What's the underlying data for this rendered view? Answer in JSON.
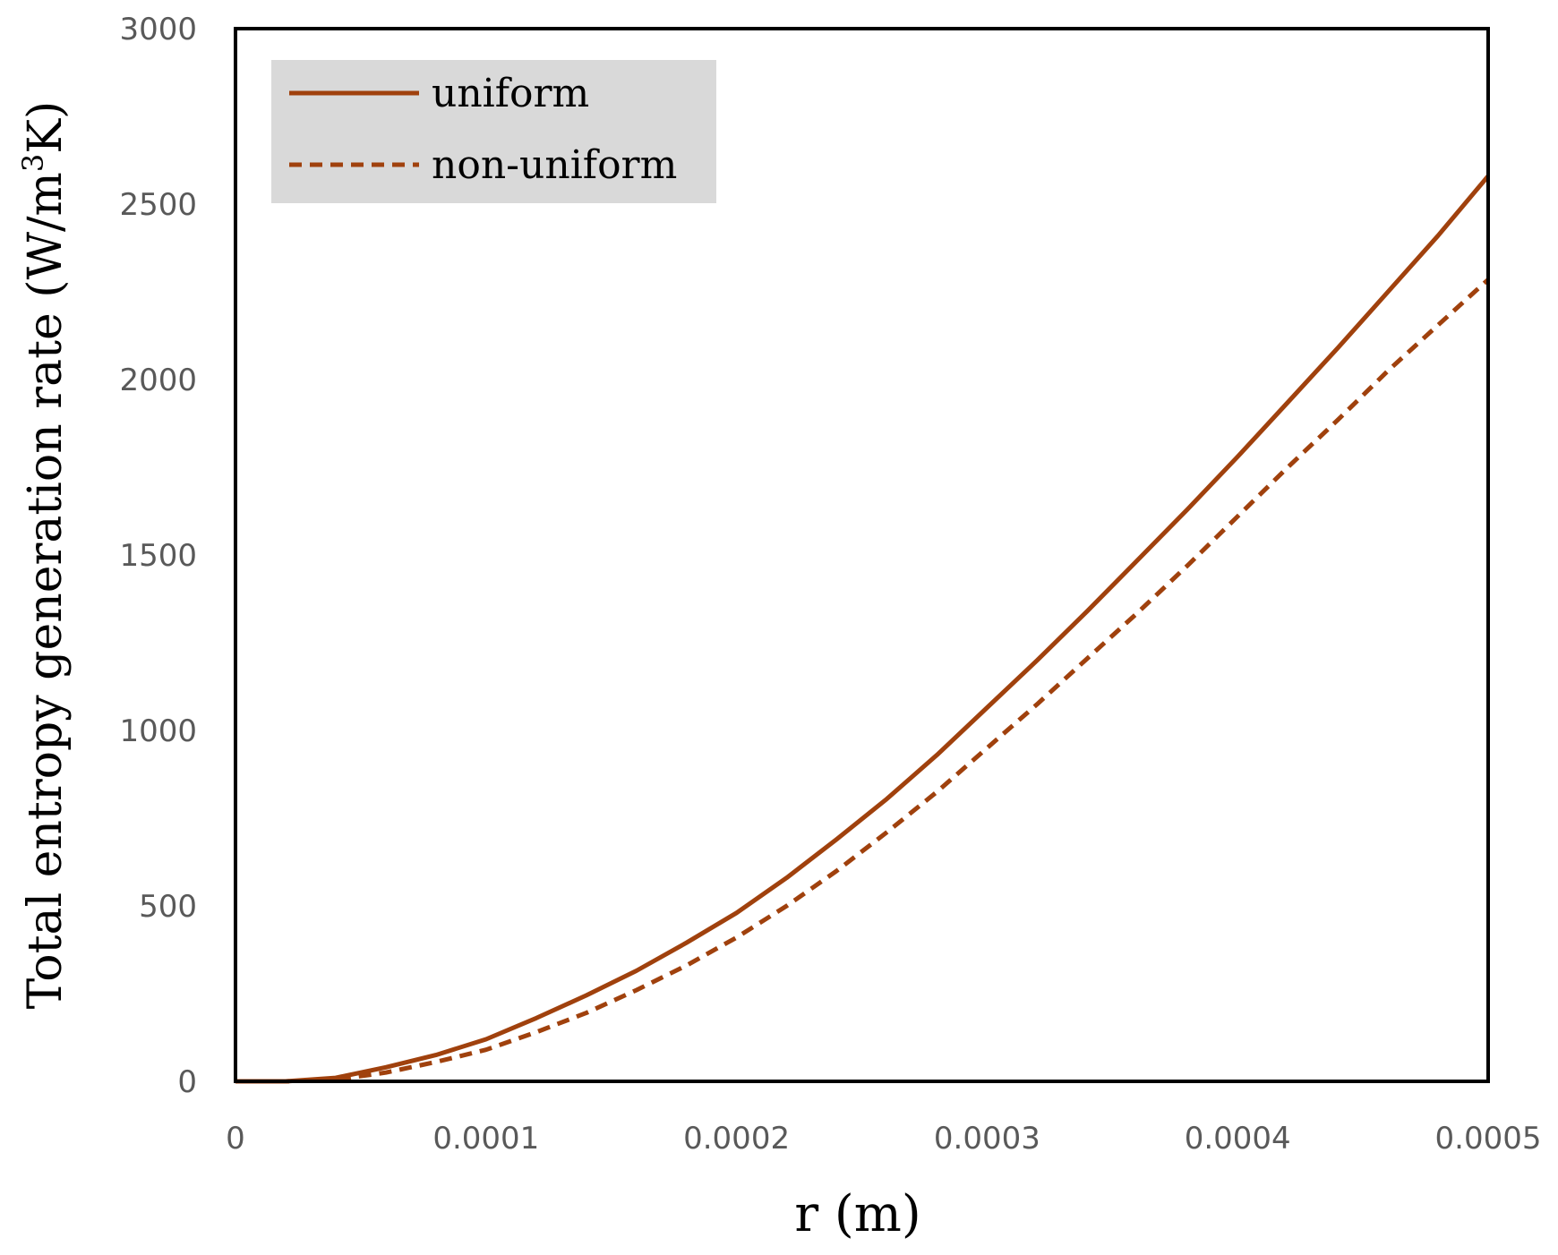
{
  "chart_data": {
    "type": "line",
    "xlabel": "r (m)",
    "ylabel": "Total entropy generation rate (W/m3K)",
    "ylabel_parts": {
      "main": "Total entropy generation rate (W/m",
      "superscript": "3",
      "end": "K)"
    },
    "xlim": [
      0,
      0.0005
    ],
    "ylim": [
      0,
      3000
    ],
    "x_ticks": [
      0,
      0.0001,
      0.0002,
      0.0003,
      0.0004,
      0.0005
    ],
    "x_tick_labels": [
      "0",
      "0.0001",
      "0.0002",
      "0.0003",
      "0.0004",
      "0.0005"
    ],
    "y_ticks": [
      0,
      500,
      1000,
      1500,
      2000,
      2500,
      3000
    ],
    "y_tick_labels": [
      "0",
      "500",
      "1000",
      "1500",
      "2000",
      "2500",
      "3000"
    ],
    "grid": false,
    "legend_position": "top-left",
    "series": [
      {
        "name": "uniform",
        "style": "solid",
        "color": "#A0410D",
        "x": [
          0,
          2e-05,
          4e-05,
          6e-05,
          8e-05,
          0.0001,
          0.00012,
          0.00014,
          0.00016,
          0.00018,
          0.0002,
          0.00022,
          0.00024,
          0.00026,
          0.00028,
          0.0003,
          0.00032,
          0.00034,
          0.00036,
          0.00038,
          0.0004,
          0.00042,
          0.00044,
          0.00046,
          0.00048,
          0.0005
        ],
        "y": [
          0,
          0,
          10,
          40,
          75,
          120,
          180,
          245,
          315,
          395,
          480,
          580,
          690,
          805,
          930,
          1065,
          1200,
          1340,
          1485,
          1630,
          1780,
          1935,
          2090,
          2250,
          2410,
          2580
        ]
      },
      {
        "name": "non-uniform",
        "style": "dashed",
        "color": "#A0410D",
        "x": [
          0,
          2e-05,
          4e-05,
          6e-05,
          8e-05,
          0.0001,
          0.00012,
          0.00014,
          0.00016,
          0.00018,
          0.0002,
          0.00022,
          0.00024,
          0.00026,
          0.00028,
          0.0003,
          0.00032,
          0.00034,
          0.00036,
          0.00038,
          0.0004,
          0.00042,
          0.00044,
          0.00046,
          0.00048,
          0.0005
        ],
        "y": [
          0,
          0,
          5,
          25,
          55,
          90,
          140,
          195,
          260,
          330,
          410,
          500,
          600,
          710,
          825,
          950,
          1075,
          1205,
          1335,
          1470,
          1610,
          1750,
          1885,
          2025,
          2155,
          2285
        ]
      }
    ]
  }
}
